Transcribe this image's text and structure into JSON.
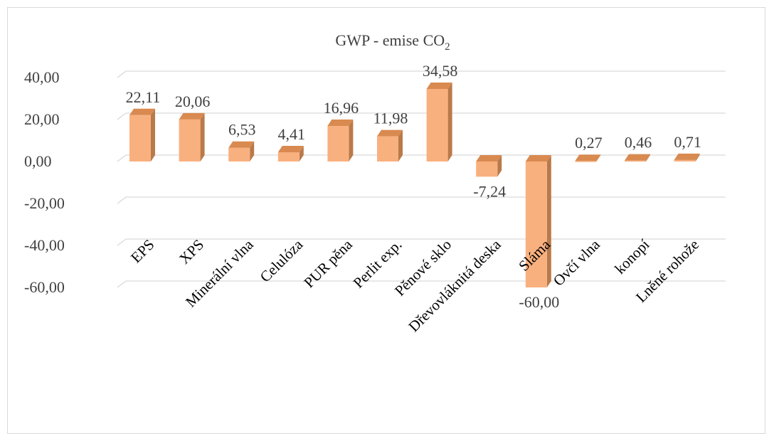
{
  "chart_data": {
    "type": "bar",
    "title": "GWP - emise CO",
    "title_subscript": "2",
    "xlabel": "",
    "ylabel": "",
    "categories": [
      "EPS",
      "XPS",
      "Minerální vlna",
      "Celulóza",
      "PUR pěna",
      "Perlit exp.",
      "Pěnové sklo",
      "Dřevovláknitá deska",
      "Sláma",
      "Ovčí vlna",
      "konopí",
      "Lněné rohože"
    ],
    "values": [
      22.11,
      20.06,
      6.53,
      4.41,
      16.96,
      11.98,
      34.58,
      -7.24,
      -60.0,
      0.27,
      0.46,
      0.71
    ],
    "value_labels": [
      "22,11",
      "20,06",
      "6,53",
      "4,41",
      "16,96",
      "11,98",
      "34,58",
      "-7,24",
      "-60,00",
      "0,27",
      "0,46",
      "0,71"
    ],
    "y_ticks": [
      40,
      20,
      0,
      -20,
      -40,
      -60
    ],
    "y_tick_labels": [
      "40,00",
      "20,00",
      "0,00",
      "-20,00",
      "-40,00",
      "-60,00"
    ],
    "ylim": [
      -60,
      40
    ],
    "grid": true,
    "legend": "none",
    "style": "3d-column"
  },
  "colors": {
    "bar_front": "#f9b07f",
    "bar_side": "#b97a4a",
    "bar_top": "#d98a50",
    "grid": "#d9d9d9",
    "text": "#404040"
  }
}
